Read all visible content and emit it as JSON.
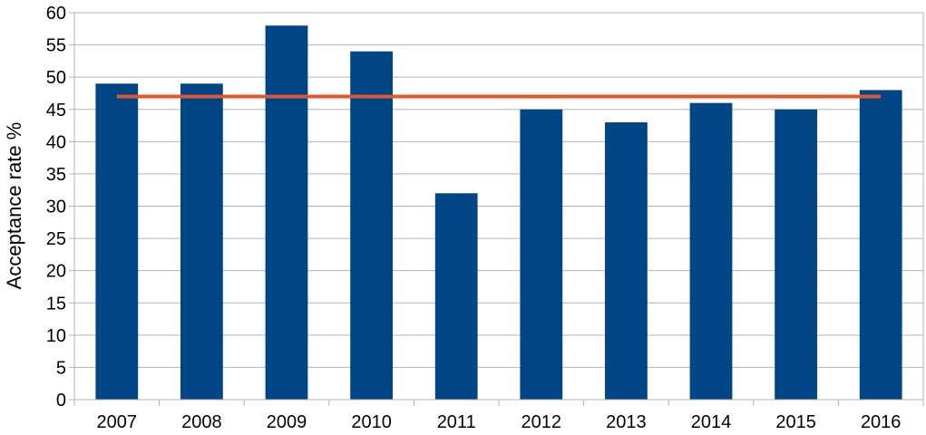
{
  "chart_data": {
    "type": "bar",
    "categories": [
      "2007",
      "2008",
      "2009",
      "2010",
      "2011",
      "2012",
      "2013",
      "2014",
      "2015",
      "2016"
    ],
    "series": [
      {
        "values": [
          49,
          49,
          58,
          54,
          32,
          45,
          43,
          46,
          45,
          48
        ],
        "color": "#004586"
      }
    ],
    "reference_line": {
      "value": 47,
      "color": "#e1562d"
    },
    "title": "",
    "xlabel": "",
    "ylabel": "Acceptance rate %",
    "ylim": [
      0,
      60
    ],
    "yticks": [
      0,
      5,
      10,
      15,
      20,
      25,
      30,
      35,
      40,
      45,
      50,
      55,
      60
    ],
    "grid": true,
    "grid_color": "#b3b3b3"
  }
}
